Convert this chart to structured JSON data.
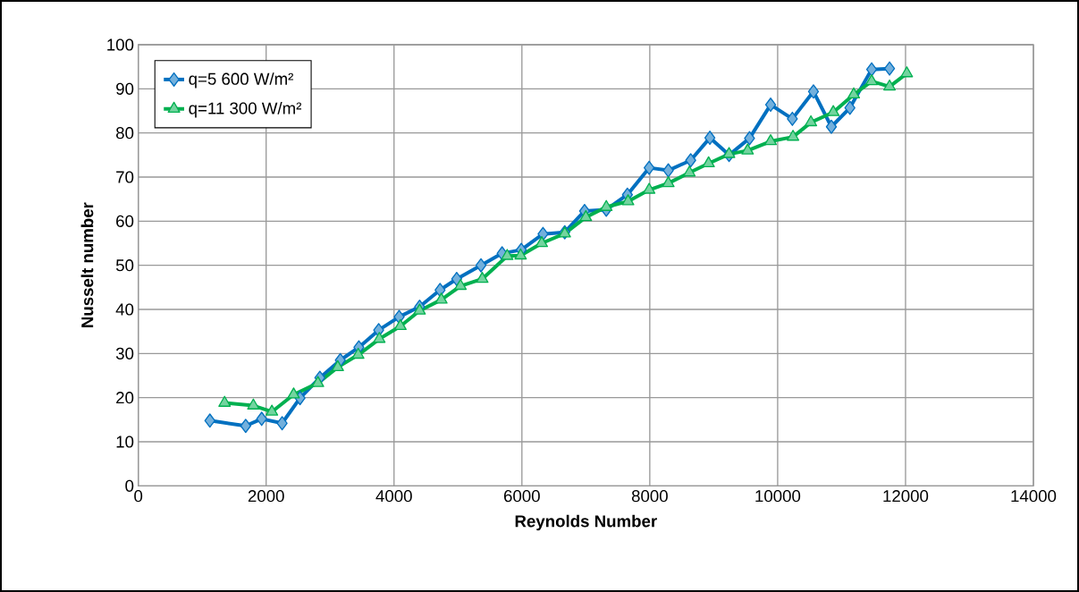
{
  "chart_data": {
    "type": "line",
    "xlabel": "Reynolds Number",
    "ylabel": "Nusselt number",
    "xlim": [
      0,
      14000
    ],
    "xticks": [
      0,
      2000,
      4000,
      6000,
      8000,
      10000,
      12000,
      14000
    ],
    "ylim": [
      0,
      100
    ],
    "yticks": [
      0,
      10,
      20,
      30,
      40,
      50,
      60,
      70,
      80,
      90,
      100
    ],
    "grid": true,
    "legend": "top left",
    "line_style": "solid",
    "series": [
      {
        "name": "q=5 600 W/m²",
        "color": "#0070c0",
        "marker": "diamond",
        "x": [
          1120,
          1680,
          1930,
          2250,
          2530,
          2840,
          3160,
          3450,
          3760,
          4080,
          4400,
          4720,
          4980,
          5360,
          5690,
          5990,
          6330,
          6670,
          6980,
          7320,
          7650,
          7990,
          8290,
          8640,
          8940,
          9240,
          9560,
          9890,
          10230,
          10560,
          10840,
          11130,
          11470,
          11750
        ],
        "values": [
          14.8,
          13.6,
          15.2,
          14.2,
          19.9,
          24.5,
          28.5,
          31.4,
          35.3,
          38.3,
          40.6,
          44.4,
          46.9,
          50.0,
          52.7,
          53.5,
          57.1,
          57.5,
          62.3,
          62.6,
          66.0,
          72.1,
          71.5,
          73.8,
          78.9,
          75.0,
          78.8,
          86.4,
          83.2,
          89.4,
          81.4,
          85.7,
          94.4,
          94.6
        ]
      },
      {
        "name": "q=11 300 W/m²",
        "color": "#00b050",
        "marker": "triangle",
        "x": [
          1350,
          1800,
          2090,
          2430,
          2810,
          3120,
          3440,
          3770,
          4100,
          4400,
          4740,
          5040,
          5380,
          5770,
          5980,
          6310,
          6670,
          7000,
          7320,
          7660,
          7990,
          8290,
          8620,
          8920,
          9240,
          9530,
          9890,
          10240,
          10520,
          10870,
          11190,
          11470,
          11750,
          12020
        ],
        "values": [
          18.8,
          18.2,
          16.8,
          20.7,
          23.3,
          26.9,
          29.7,
          33.3,
          36.2,
          39.7,
          42.2,
          45.3,
          46.9,
          52.1,
          52.2,
          55.0,
          57.2,
          60.9,
          63.2,
          64.5,
          67.1,
          68.6,
          71.0,
          73.1,
          75.2,
          76.0,
          78.1,
          79.1,
          82.4,
          84.7,
          88.7,
          91.7,
          90.5,
          93.5
        ]
      }
    ]
  }
}
